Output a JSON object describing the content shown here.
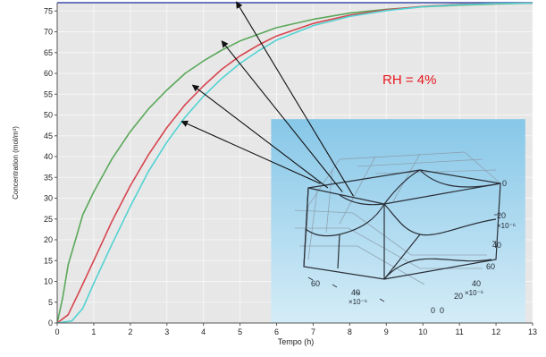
{
  "chart_data": {
    "type": "line",
    "xlabel": "Tempo (h)",
    "ylabel": "Concentration (mol/m³)",
    "xlim": [
      0,
      13
    ],
    "ylim": [
      0,
      77
    ],
    "x_ticks": [
      0,
      1,
      2,
      3,
      4,
      5,
      6,
      7,
      8,
      9,
      10,
      11,
      12,
      13
    ],
    "y_ticks": [
      0,
      5,
      10,
      15,
      20,
      25,
      30,
      35,
      40,
      45,
      50,
      55,
      60,
      65,
      70,
      75
    ],
    "grid": true,
    "annotation": "RH = 4%",
    "colors": {
      "plot_background": "#e7e7e7",
      "grid": "#f6f6f6",
      "inset_top": "#87c7e8",
      "inset_bottom": "#d4ecf7",
      "annotation": "#e8191f"
    },
    "series": [
      {
        "color": "#3f4fa8",
        "x": [
          0,
          0.5,
          1,
          2,
          3,
          4,
          5,
          6,
          7,
          8,
          9,
          10,
          11,
          12,
          13
        ],
        "y": [
          77,
          77,
          77,
          77,
          77,
          77,
          77,
          77,
          77,
          77,
          77,
          77,
          77,
          77,
          77
        ]
      },
      {
        "color": "#5aa85a",
        "x": [
          0,
          0.15,
          0.3,
          0.5,
          0.7,
          1,
          1.5,
          2,
          2.5,
          3,
          3.5,
          4,
          4.5,
          5,
          6,
          7,
          8,
          9,
          10,
          11,
          12,
          13
        ],
        "y": [
          0,
          6,
          14,
          20,
          26,
          31.5,
          39.5,
          46,
          51.5,
          56,
          60,
          63,
          65.6,
          67.8,
          71,
          73,
          74.5,
          75.4,
          76,
          76.4,
          76.7,
          76.9
        ]
      },
      {
        "color": "#d6454f",
        "x": [
          0,
          0.3,
          0.6,
          1,
          1.5,
          2,
          2.5,
          3,
          3.5,
          4,
          4.5,
          5,
          5.5,
          6,
          7,
          8,
          9,
          10,
          11,
          12,
          13
        ],
        "y": [
          0,
          2,
          7.5,
          15,
          24.5,
          33,
          40.5,
          47,
          52.5,
          57,
          61,
          64.2,
          66.8,
          69,
          72,
          74,
          75.3,
          76.1,
          76.6,
          76.8,
          76.9
        ]
      },
      {
        "color": "#52d2d2",
        "x": [
          0,
          0.4,
          0.7,
          1,
          1.5,
          2,
          2.5,
          3,
          3.5,
          4,
          4.5,
          5,
          5.5,
          6,
          7,
          8,
          9,
          10,
          11,
          12,
          13
        ],
        "y": [
          0,
          0.5,
          3.5,
          9.5,
          19,
          28,
          36.5,
          43.5,
          49.5,
          54.5,
          58.8,
          62.4,
          65.4,
          68,
          71.5,
          73.7,
          75.1,
          76,
          76.5,
          76.8,
          76.9
        ]
      }
    ],
    "arrows": [
      {
        "from": [
          8.1,
          30.5
        ],
        "to": [
          4.9,
          77.2
        ]
      },
      {
        "from": [
          7.8,
          31.5
        ],
        "to": [
          4.5,
          67.8
        ]
      },
      {
        "from": [
          7.4,
          32.5
        ],
        "to": [
          3.7,
          57.2
        ]
      },
      {
        "from": [
          7.2,
          33.5
        ],
        "to": [
          3.4,
          48.5
        ]
      }
    ],
    "inset": {
      "x_start": 5.85,
      "x_end": 12.8,
      "y_top": 49,
      "y_bottom": 0,
      "labels": [
        "0",
        "20",
        "×10⁻⁶",
        "40",
        "60",
        "60",
        "40",
        "×10⁻⁶",
        "40",
        "20",
        "×10⁻⁶",
        "0",
        "0"
      ]
    }
  }
}
